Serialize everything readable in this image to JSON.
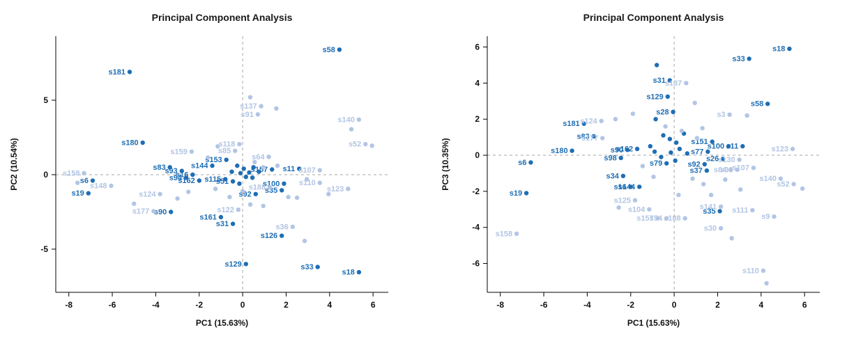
{
  "palette": {
    "dark": "#1f6eb4",
    "light": "#b2c5e4",
    "axis": "#000000",
    "grid": "#a6a6a6"
  },
  "chart_data": [
    {
      "type": "scatter",
      "title": "Principal Component Analysis",
      "xlabel": "PC1 (15.63%)",
      "ylabel": "PC2 (10.54%)",
      "xlim": [
        -8.6,
        6.7
      ],
      "ylim": [
        -7.9,
        9.3
      ],
      "xticks": [
        -8,
        -6,
        -4,
        -2,
        0,
        2,
        4,
        6
      ],
      "yticks": [
        -5,
        0,
        5
      ],
      "grid": "dashed lines at x=0 and y=0",
      "legend": "none",
      "points": [
        {
          "label": "s58",
          "x": 4.45,
          "y": 8.4,
          "c": "dark"
        },
        {
          "label": "s181",
          "x": -5.2,
          "y": 6.9,
          "c": "dark"
        },
        {
          "label": "s180",
          "x": -4.6,
          "y": 2.15,
          "c": "dark"
        },
        {
          "label": "s83",
          "x": -3.35,
          "y": 0.5,
          "c": "dark"
        },
        {
          "label": "s93",
          "x": -2.8,
          "y": 0.25,
          "c": "dark"
        },
        {
          "label": "s94",
          "x": -2.6,
          "y": -0.2,
          "c": "dark"
        },
        {
          "label": "s6",
          "x": -6.9,
          "y": -0.4,
          "c": "dark"
        },
        {
          "label": "s19",
          "x": -7.1,
          "y": -1.25,
          "c": "dark"
        },
        {
          "label": "s16",
          "x": -2.3,
          "y": 0.0,
          "c": "dark"
        },
        {
          "label": "s162",
          "x": -2.0,
          "y": -0.4,
          "c": "dark"
        },
        {
          "label": "s144",
          "x": -1.4,
          "y": 0.6,
          "c": "dark"
        },
        {
          "label": "s153",
          "x": -0.75,
          "y": 1.0,
          "c": "dark"
        },
        {
          "label": "s115",
          "x": -0.8,
          "y": -0.3,
          "c": "dark"
        },
        {
          "label": "s51",
          "x": -0.45,
          "y": -0.45,
          "c": "dark"
        },
        {
          "label": "s161",
          "x": -1.0,
          "y": -2.85,
          "c": "dark"
        },
        {
          "label": "s31",
          "x": -0.45,
          "y": -3.3,
          "c": "dark"
        },
        {
          "label": "s90",
          "x": -3.3,
          "y": -2.5,
          "c": "dark"
        },
        {
          "label": "s92",
          "x": 0.6,
          "y": -1.3,
          "c": "dark"
        },
        {
          "label": "s100",
          "x": 1.9,
          "y": -0.6,
          "c": "dark"
        },
        {
          "label": "s35",
          "x": 1.8,
          "y": -1.05,
          "c": "dark"
        },
        {
          "label": "s157",
          "x": 1.35,
          "y": 0.35,
          "c": "dark"
        },
        {
          "label": "s11",
          "x": 2.6,
          "y": 0.4,
          "c": "dark"
        },
        {
          "label": "s126",
          "x": 1.8,
          "y": -4.1,
          "c": "dark"
        },
        {
          "label": "s129",
          "x": 0.15,
          "y": -6.0,
          "c": "dark"
        },
        {
          "label": "s33",
          "x": 3.45,
          "y": -6.2,
          "c": "dark"
        },
        {
          "label": "s18",
          "x": 5.35,
          "y": -6.55,
          "c": "dark"
        },
        {
          "label": "s137",
          "x": 0.85,
          "y": 4.6,
          "c": "light"
        },
        {
          "label": "s91",
          "x": 0.7,
          "y": 4.05,
          "c": "light"
        },
        {
          "label": "s140",
          "x": 5.35,
          "y": 3.7,
          "c": "light"
        },
        {
          "label": "s52",
          "x": 5.65,
          "y": 2.05,
          "c": "light"
        },
        {
          "label": "s118",
          "x": -0.15,
          "y": 2.05,
          "c": "light"
        },
        {
          "label": "s85",
          "x": -0.35,
          "y": 1.6,
          "c": "light"
        },
        {
          "label": "s159",
          "x": -2.35,
          "y": 1.55,
          "c": "light"
        },
        {
          "label": "s64",
          "x": 1.2,
          "y": 1.2,
          "c": "light"
        },
        {
          "label": "s107",
          "x": 3.55,
          "y": 0.3,
          "c": "light"
        },
        {
          "label": "s110",
          "x": 3.55,
          "y": -0.55,
          "c": "light"
        },
        {
          "label": "s123",
          "x": 4.85,
          "y": -0.95,
          "c": "light"
        },
        {
          "label": "s188",
          "x": 1.25,
          "y": -0.85,
          "c": "light"
        },
        {
          "label": "s36",
          "x": 2.3,
          "y": -3.5,
          "c": "light"
        },
        {
          "label": "s122",
          "x": -0.2,
          "y": -2.35,
          "c": "light"
        },
        {
          "label": "s124",
          "x": -3.8,
          "y": -1.3,
          "c": "light"
        },
        {
          "label": "s177",
          "x": -4.1,
          "y": -2.45,
          "c": "light"
        },
        {
          "label": "s148",
          "x": -6.05,
          "y": -0.75,
          "c": "light"
        },
        {
          "label": "s158",
          "x": -7.3,
          "y": 0.1,
          "c": "light"
        },
        {
          "label": "",
          "x": -0.25,
          "y": 0.6,
          "c": "dark"
        },
        {
          "label": "",
          "x": 0.05,
          "y": 0.4,
          "c": "dark"
        },
        {
          "label": "",
          "x": 0.3,
          "y": 0.15,
          "c": "dark"
        },
        {
          "label": "",
          "x": -0.1,
          "y": 0.1,
          "c": "dark"
        },
        {
          "label": "",
          "x": 0.15,
          "y": -0.15,
          "c": "dark"
        },
        {
          "label": "",
          "x": -0.5,
          "y": 0.2,
          "c": "dark"
        },
        {
          "label": "",
          "x": 0.5,
          "y": 0.5,
          "c": "dark"
        },
        {
          "label": "",
          "x": 0.45,
          "y": -0.2,
          "c": "dark"
        },
        {
          "label": "",
          "x": -0.15,
          "y": -0.6,
          "c": "dark"
        },
        {
          "label": "",
          "x": 0.75,
          "y": 0.2,
          "c": "dark"
        },
        {
          "label": "",
          "x": 0.35,
          "y": 5.2,
          "c": "light"
        },
        {
          "label": "",
          "x": 1.55,
          "y": 4.45,
          "c": "light"
        },
        {
          "label": "",
          "x": -7.6,
          "y": -0.55,
          "c": "light"
        },
        {
          "label": "",
          "x": -5.0,
          "y": -1.95,
          "c": "light"
        },
        {
          "label": "",
          "x": -3.0,
          "y": -1.6,
          "c": "light"
        },
        {
          "label": "",
          "x": -2.5,
          "y": -1.15,
          "c": "light"
        },
        {
          "label": "",
          "x": -1.6,
          "y": 1.15,
          "c": "light"
        },
        {
          "label": "",
          "x": -1.15,
          "y": 1.9,
          "c": "light"
        },
        {
          "label": "",
          "x": 0.55,
          "y": 0.85,
          "c": "light"
        },
        {
          "label": "",
          "x": 0.95,
          "y": 0.5,
          "c": "light"
        },
        {
          "label": "",
          "x": 1.6,
          "y": 0.6,
          "c": "light"
        },
        {
          "label": "",
          "x": 2.1,
          "y": -1.5,
          "c": "light"
        },
        {
          "label": "",
          "x": 2.5,
          "y": -1.55,
          "c": "light"
        },
        {
          "label": "",
          "x": 0.35,
          "y": -2.0,
          "c": "light"
        },
        {
          "label": "",
          "x": 0.95,
          "y": -2.1,
          "c": "light"
        },
        {
          "label": "",
          "x": -0.6,
          "y": -1.5,
          "c": "light"
        },
        {
          "label": "",
          "x": 2.95,
          "y": -0.3,
          "c": "light"
        },
        {
          "label": "",
          "x": 3.95,
          "y": -1.3,
          "c": "light"
        },
        {
          "label": "",
          "x": 2.85,
          "y": -4.45,
          "c": "light"
        },
        {
          "label": "",
          "x": -1.25,
          "y": -0.95,
          "c": "light"
        },
        {
          "label": "",
          "x": 0.0,
          "y": -1.1,
          "c": "light"
        },
        {
          "label": "",
          "x": 5.0,
          "y": 3.05,
          "c": "light"
        },
        {
          "label": "",
          "x": 5.95,
          "y": 1.95,
          "c": "light"
        }
      ]
    },
    {
      "type": "scatter",
      "title": "Principal Component Analysis",
      "xlabel": "PC1 (15.63%)",
      "ylabel": "PC3 (10.35%)",
      "xlim": [
        -8.6,
        6.7
      ],
      "ylim": [
        -7.6,
        6.6
      ],
      "xticks": [
        -8,
        -6,
        -4,
        -2,
        0,
        2,
        4,
        6
      ],
      "yticks": [
        -6,
        -4,
        -2,
        0,
        2,
        4,
        6
      ],
      "grid": "dashed lines at x=0 and y=0",
      "legend": "none",
      "points": [
        {
          "label": "s18",
          "x": 5.3,
          "y": 5.9,
          "c": "dark"
        },
        {
          "label": "s33",
          "x": 3.45,
          "y": 5.35,
          "c": "dark"
        },
        {
          "label": "s31",
          "x": -0.2,
          "y": 4.15,
          "c": "dark"
        },
        {
          "label": "s129",
          "x": -0.3,
          "y": 3.25,
          "c": "dark"
        },
        {
          "label": "s58",
          "x": 4.3,
          "y": 2.85,
          "c": "dark"
        },
        {
          "label": "s181",
          "x": -4.15,
          "y": 1.75,
          "c": "dark"
        },
        {
          "label": "s83",
          "x": -3.7,
          "y": 1.05,
          "c": "dark"
        },
        {
          "label": "s180",
          "x": -4.7,
          "y": 0.25,
          "c": "dark"
        },
        {
          "label": "s6",
          "x": -6.6,
          "y": -0.4,
          "c": "dark"
        },
        {
          "label": "s19",
          "x": -6.8,
          "y": -2.1,
          "c": "dark"
        },
        {
          "label": "s90",
          "x": -2.15,
          "y": 0.3,
          "c": "dark"
        },
        {
          "label": "s98",
          "x": -2.45,
          "y": -0.15,
          "c": "dark"
        },
        {
          "label": "s162",
          "x": -1.7,
          "y": 0.35,
          "c": "dark"
        },
        {
          "label": "s34",
          "x": -2.35,
          "y": -1.15,
          "c": "dark"
        },
        {
          "label": "s16",
          "x": -2.0,
          "y": -1.75,
          "c": "dark"
        },
        {
          "label": "s144",
          "x": -1.6,
          "y": -1.75,
          "c": "dark"
        },
        {
          "label": "s151",
          "x": 1.75,
          "y": 0.75,
          "c": "dark"
        },
        {
          "label": "s77",
          "x": 1.55,
          "y": 0.2,
          "c": "dark"
        },
        {
          "label": "s100",
          "x": 2.5,
          "y": 0.5,
          "c": "dark"
        },
        {
          "label": "s11",
          "x": 3.15,
          "y": 0.5,
          "c": "dark"
        },
        {
          "label": "s26",
          "x": 2.25,
          "y": -0.2,
          "c": "dark"
        },
        {
          "label": "s92",
          "x": 1.4,
          "y": -0.5,
          "c": "dark"
        },
        {
          "label": "s37",
          "x": 1.5,
          "y": -0.85,
          "c": "dark"
        },
        {
          "label": "s79",
          "x": -0.35,
          "y": -0.45,
          "c": "dark"
        },
        {
          "label": "s35",
          "x": 2.1,
          "y": -3.1,
          "c": "dark"
        },
        {
          "label": "s28",
          "x": -0.05,
          "y": 2.4,
          "c": "dark"
        },
        {
          "label": "s137",
          "x": 0.55,
          "y": 4.0,
          "c": "light"
        },
        {
          "label": "s124",
          "x": -3.35,
          "y": 1.9,
          "c": "light"
        },
        {
          "label": "s177",
          "x": -3.3,
          "y": 0.95,
          "c": "light"
        },
        {
          "label": "s3",
          "x": 2.55,
          "y": 2.25,
          "c": "light"
        },
        {
          "label": "s123",
          "x": 5.45,
          "y": 0.35,
          "c": "light"
        },
        {
          "label": "s130",
          "x": 3.0,
          "y": -0.25,
          "c": "light"
        },
        {
          "label": "s107",
          "x": 3.65,
          "y": -0.7,
          "c": "light"
        },
        {
          "label": "s140",
          "x": 4.9,
          "y": -1.3,
          "c": "light"
        },
        {
          "label": "s52",
          "x": 5.5,
          "y": -1.6,
          "c": "light"
        },
        {
          "label": "s125",
          "x": -1.8,
          "y": -2.5,
          "c": "light"
        },
        {
          "label": "s104",
          "x": -1.15,
          "y": -3.0,
          "c": "light"
        },
        {
          "label": "s157",
          "x": -0.75,
          "y": -3.5,
          "c": "light"
        },
        {
          "label": "s54",
          "x": -0.35,
          "y": -3.5,
          "c": "light"
        },
        {
          "label": "s188",
          "x": 0.5,
          "y": -3.5,
          "c": "light"
        },
        {
          "label": "s141",
          "x": 2.15,
          "y": -2.85,
          "c": "light"
        },
        {
          "label": "s111",
          "x": 3.6,
          "y": -3.05,
          "c": "light"
        },
        {
          "label": "s9",
          "x": 4.6,
          "y": -3.4,
          "c": "light"
        },
        {
          "label": "s30",
          "x": 2.15,
          "y": -4.05,
          "c": "light"
        },
        {
          "label": "s158",
          "x": -7.25,
          "y": -4.35,
          "c": "light"
        },
        {
          "label": "s110",
          "x": 4.1,
          "y": -6.4,
          "c": "light"
        },
        {
          "label": "s64",
          "x": 2.6,
          "y": -0.8,
          "c": "light"
        },
        {
          "label": "s36",
          "x": 2.9,
          "y": -0.8,
          "c": "light"
        },
        {
          "label": "",
          "x": -0.8,
          "y": 5.0,
          "c": "dark"
        },
        {
          "label": "",
          "x": -0.85,
          "y": 2.0,
          "c": "dark"
        },
        {
          "label": "",
          "x": -0.5,
          "y": 1.1,
          "c": "dark"
        },
        {
          "label": "",
          "x": -0.2,
          "y": 0.9,
          "c": "dark"
        },
        {
          "label": "",
          "x": 0.1,
          "y": 0.7,
          "c": "dark"
        },
        {
          "label": "",
          "x": -0.9,
          "y": 0.2,
          "c": "dark"
        },
        {
          "label": "",
          "x": -0.6,
          "y": -0.1,
          "c": "dark"
        },
        {
          "label": "",
          "x": -0.15,
          "y": 0.15,
          "c": "dark"
        },
        {
          "label": "",
          "x": 0.25,
          "y": 0.35,
          "c": "dark"
        },
        {
          "label": "",
          "x": 0.05,
          "y": -0.3,
          "c": "dark"
        },
        {
          "label": "",
          "x": -1.1,
          "y": 0.5,
          "c": "dark"
        },
        {
          "label": "",
          "x": 0.45,
          "y": 1.2,
          "c": "dark"
        },
        {
          "label": "",
          "x": 0.6,
          "y": 0.1,
          "c": "dark"
        },
        {
          "label": "",
          "x": -2.7,
          "y": 2.0,
          "c": "light"
        },
        {
          "label": "",
          "x": 0.95,
          "y": 2.9,
          "c": "light"
        },
        {
          "label": "",
          "x": 1.3,
          "y": 1.5,
          "c": "light"
        },
        {
          "label": "",
          "x": -0.4,
          "y": 1.6,
          "c": "light"
        },
        {
          "label": "",
          "x": 0.35,
          "y": 1.35,
          "c": "light"
        },
        {
          "label": "",
          "x": 1.05,
          "y": 0.95,
          "c": "light"
        },
        {
          "label": "",
          "x": -1.45,
          "y": -0.6,
          "c": "light"
        },
        {
          "label": "",
          "x": -2.55,
          "y": -2.9,
          "c": "light"
        },
        {
          "label": "",
          "x": 0.85,
          "y": -1.3,
          "c": "light"
        },
        {
          "label": "",
          "x": 1.35,
          "y": -1.6,
          "c": "light"
        },
        {
          "label": "",
          "x": 2.35,
          "y": -1.35,
          "c": "light"
        },
        {
          "label": "",
          "x": 3.05,
          "y": -1.9,
          "c": "light"
        },
        {
          "label": "",
          "x": 5.9,
          "y": -1.85,
          "c": "light"
        },
        {
          "label": "",
          "x": 2.65,
          "y": -4.6,
          "c": "light"
        },
        {
          "label": "",
          "x": -0.95,
          "y": -1.2,
          "c": "light"
        },
        {
          "label": "",
          "x": 4.25,
          "y": -7.1,
          "c": "light"
        },
        {
          "label": "",
          "x": 3.35,
          "y": 2.2,
          "c": "light"
        },
        {
          "label": "",
          "x": 0.2,
          "y": -2.2,
          "c": "light"
        },
        {
          "label": "",
          "x": 1.7,
          "y": -2.2,
          "c": "light"
        },
        {
          "label": "",
          "x": -1.9,
          "y": 2.3,
          "c": "light"
        }
      ]
    }
  ]
}
